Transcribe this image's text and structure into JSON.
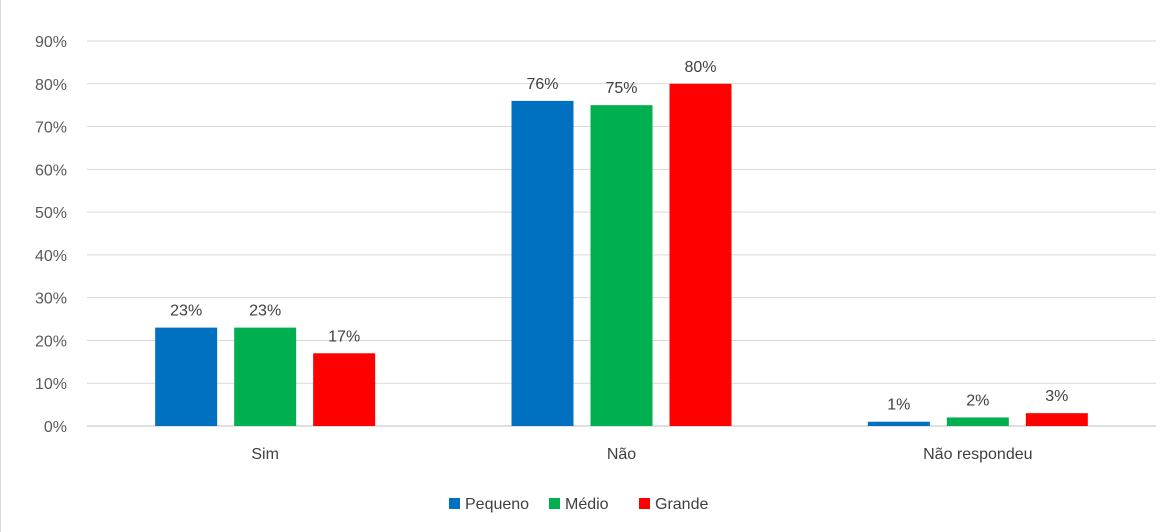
{
  "chart_data": {
    "type": "bar",
    "categories": [
      "Sim",
      "Não",
      "Não respondeu"
    ],
    "series": [
      {
        "name": "Pequeno",
        "color": "#0070C0",
        "values": [
          23,
          76,
          1
        ],
        "labels": [
          "23%",
          "76%",
          "1%"
        ]
      },
      {
        "name": "Médio",
        "color": "#00B050",
        "values": [
          23,
          75,
          2
        ],
        "labels": [
          "23%",
          "75%",
          "2%"
        ]
      },
      {
        "name": "Grande",
        "color": "#FF0000",
        "values": [
          17,
          80,
          3
        ],
        "labels": [
          "17%",
          "80%",
          "3%"
        ]
      }
    ],
    "ylim": [
      0,
      90
    ],
    "yticks": [
      0,
      10,
      20,
      30,
      40,
      50,
      60,
      70,
      80,
      90
    ],
    "ytick_labels": [
      "0%",
      "10%",
      "20%",
      "30%",
      "40%",
      "50%",
      "60%",
      "70%",
      "80%",
      "90%"
    ],
    "grid": true,
    "legend_position": "bottom",
    "title": "",
    "xlabel": "",
    "ylabel": ""
  }
}
